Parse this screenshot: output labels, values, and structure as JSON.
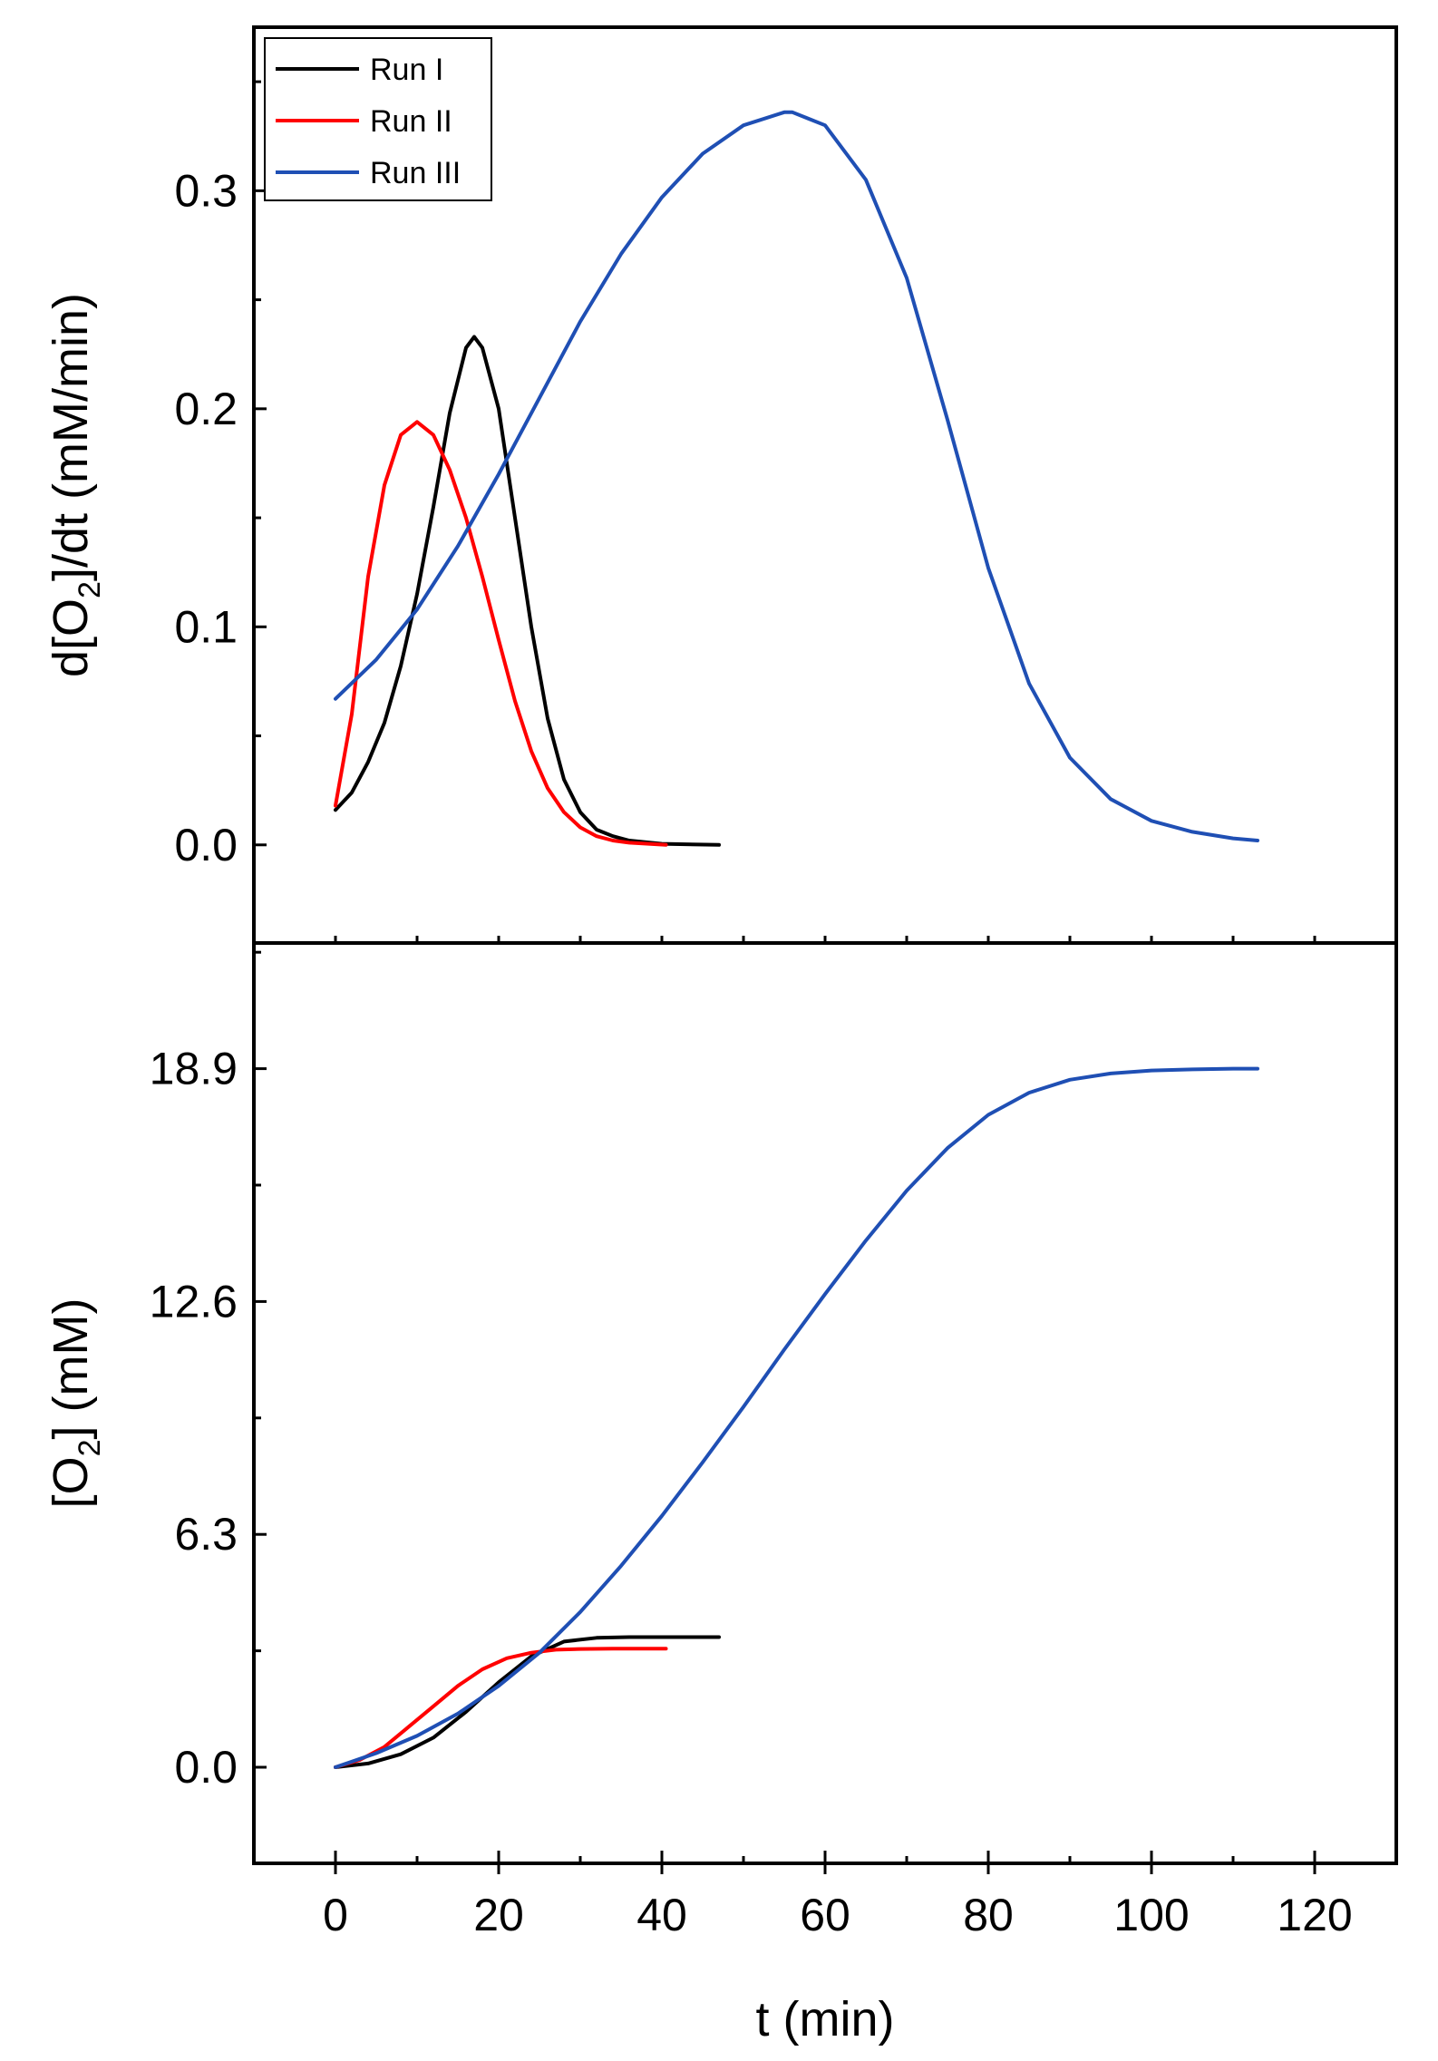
{
  "chart_data": [
    {
      "type": "line",
      "panel": "top",
      "ylabel_prefix": "d[O",
      "ylabel_sub": "2",
      "ylabel_suffix": "]/dt (mM/min)",
      "xlabel": "",
      "xlim": [
        -10,
        130
      ],
      "ylim": [
        -0.045,
        0.375
      ],
      "yticks": [
        "0.0",
        "0.1",
        "0.2",
        "0.3"
      ],
      "ytick_values": [
        0.0,
        0.1,
        0.2,
        0.3
      ],
      "legend": {
        "placement": "top-left",
        "entries": [
          {
            "label": "Run I",
            "color": "#000000"
          },
          {
            "label": "Run II",
            "color": "#ff0000"
          },
          {
            "label": "Run III",
            "color": "#1f4fb4"
          }
        ]
      },
      "series": [
        {
          "name": "Run I",
          "color": "#000000",
          "x": [
            0,
            2,
            4,
            6,
            8,
            10,
            12,
            14,
            16,
            17,
            18,
            20,
            22,
            24,
            26,
            28,
            30,
            32,
            34,
            36,
            40,
            47
          ],
          "y": [
            0.016,
            0.024,
            0.038,
            0.056,
            0.082,
            0.115,
            0.155,
            0.198,
            0.228,
            0.233,
            0.228,
            0.2,
            0.15,
            0.1,
            0.058,
            0.03,
            0.015,
            0.007,
            0.004,
            0.002,
            0.0005,
            0.0
          ]
        },
        {
          "name": "Run II",
          "color": "#ff0000",
          "x": [
            0,
            2,
            4,
            6,
            8,
            10,
            12,
            14,
            16,
            18,
            20,
            22,
            24,
            26,
            28,
            30,
            32,
            34,
            36,
            40.5
          ],
          "y": [
            0.018,
            0.06,
            0.123,
            0.165,
            0.188,
            0.194,
            0.188,
            0.172,
            0.15,
            0.123,
            0.094,
            0.066,
            0.043,
            0.026,
            0.015,
            0.008,
            0.004,
            0.002,
            0.001,
            0.0
          ]
        },
        {
          "name": "Run III",
          "color": "#1f4fb4",
          "x": [
            0,
            5,
            10,
            15,
            20,
            25,
            30,
            35,
            40,
            45,
            50,
            55,
            56,
            60,
            65,
            70,
            75,
            80,
            85,
            90,
            95,
            100,
            105,
            110,
            113
          ],
          "y": [
            0.067,
            0.085,
            0.108,
            0.137,
            0.17,
            0.205,
            0.24,
            0.271,
            0.297,
            0.317,
            0.33,
            0.336,
            0.336,
            0.33,
            0.305,
            0.26,
            0.195,
            0.127,
            0.074,
            0.04,
            0.021,
            0.011,
            0.006,
            0.003,
            0.002
          ]
        }
      ]
    },
    {
      "type": "line",
      "panel": "bottom",
      "ylabel_prefix": "[O",
      "ylabel_sub": "2",
      "ylabel_suffix": "] (mM)",
      "xlabel": "t (min)",
      "xlim": [
        -10,
        130
      ],
      "ylim": [
        -2.6,
        22.3
      ],
      "xticks": [
        "0",
        "20",
        "40",
        "60",
        "80",
        "100",
        "120"
      ],
      "xtick_values": [
        0,
        20,
        40,
        60,
        80,
        100,
        120
      ],
      "yticks": [
        "0.0",
        "6.3",
        "12.6",
        "18.9"
      ],
      "ytick_values": [
        0.0,
        6.3,
        12.6,
        18.9
      ],
      "series": [
        {
          "name": "Run I",
          "color": "#000000",
          "x": [
            0,
            4,
            8,
            12,
            16,
            20,
            24,
            28,
            32,
            36,
            40,
            47
          ],
          "y": [
            0.0,
            0.1,
            0.35,
            0.8,
            1.5,
            2.3,
            3.0,
            3.4,
            3.5,
            3.52,
            3.52,
            3.52
          ]
        },
        {
          "name": "Run II",
          "color": "#ff0000",
          "x": [
            0,
            3,
            6,
            9,
            12,
            15,
            18,
            21,
            24,
            27,
            30,
            34,
            40.5
          ],
          "y": [
            0.0,
            0.2,
            0.55,
            1.1,
            1.65,
            2.2,
            2.65,
            2.95,
            3.1,
            3.18,
            3.2,
            3.21,
            3.21
          ]
        },
        {
          "name": "Run III",
          "color": "#1f4fb4",
          "x": [
            0,
            5,
            10,
            15,
            20,
            25,
            30,
            35,
            40,
            45,
            50,
            55,
            60,
            65,
            70,
            75,
            80,
            85,
            90,
            95,
            100,
            105,
            110,
            113
          ],
          "y": [
            0.0,
            0.38,
            0.85,
            1.45,
            2.2,
            3.1,
            4.2,
            5.45,
            6.8,
            8.25,
            9.75,
            11.3,
            12.8,
            14.25,
            15.6,
            16.75,
            17.65,
            18.25,
            18.6,
            18.77,
            18.85,
            18.88,
            18.9,
            18.9
          ]
        }
      ]
    }
  ]
}
